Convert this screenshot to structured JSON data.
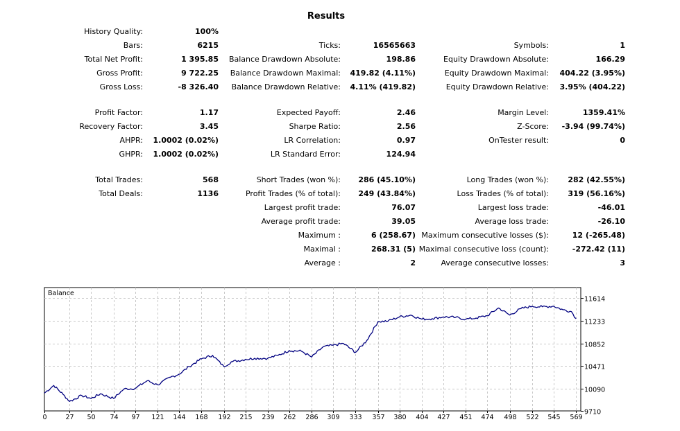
{
  "title": "Results",
  "stats": {
    "history_quality": {
      "label": "History Quality:",
      "value": "100%"
    },
    "bars": {
      "label": "Bars:",
      "value": "6215"
    },
    "total_net_profit": {
      "label": "Total Net Profit:",
      "value": "1 395.85"
    },
    "gross_profit": {
      "label": "Gross Profit:",
      "value": "9 722.25"
    },
    "gross_loss": {
      "label": "Gross Loss:",
      "value": "-8 326.40"
    },
    "profit_factor": {
      "label": "Profit Factor:",
      "value": "1.17"
    },
    "recovery_factor": {
      "label": "Recovery Factor:",
      "value": "3.45"
    },
    "ahpr": {
      "label": "AHPR:",
      "value": "1.0002 (0.02%)"
    },
    "ghpr": {
      "label": "GHPR:",
      "value": "1.0002 (0.02%)"
    },
    "total_trades": {
      "label": "Total Trades:",
      "value": "568"
    },
    "total_deals": {
      "label": "Total Deals:",
      "value": "1136"
    },
    "ticks": {
      "label": "Ticks:",
      "value": "16565663"
    },
    "balance_dd_abs": {
      "label": "Balance Drawdown Absolute:",
      "value": "198.86"
    },
    "balance_dd_max": {
      "label": "Balance Drawdown Maximal:",
      "value": "419.82 (4.11%)"
    },
    "balance_dd_rel": {
      "label": "Balance Drawdown Relative:",
      "value": "4.11% (419.82)"
    },
    "expected_payoff": {
      "label": "Expected Payoff:",
      "value": "2.46"
    },
    "sharpe_ratio": {
      "label": "Sharpe Ratio:",
      "value": "2.56"
    },
    "lr_correlation": {
      "label": "LR Correlation:",
      "value": "0.97"
    },
    "lr_std_error": {
      "label": "LR Standard Error:",
      "value": "124.94"
    },
    "short_trades": {
      "label": "Short Trades (won %):",
      "value": "286 (45.10%)"
    },
    "profit_trades": {
      "label": "Profit Trades (% of total):",
      "value": "249 (43.84%)"
    },
    "largest_profit": {
      "label": "Largest profit trade:",
      "value": "76.07"
    },
    "average_profit": {
      "label": "Average profit trade:",
      "value": "39.05"
    },
    "maximum": {
      "label": "Maximum :",
      "value": "6 (258.67)"
    },
    "maximal": {
      "label": "Maximal :",
      "value": "268.31 (5)"
    },
    "average": {
      "label": "Average :",
      "value": "2"
    },
    "symbols": {
      "label": "Symbols:",
      "value": "1"
    },
    "equity_dd_abs": {
      "label": "Equity Drawdown Absolute:",
      "value": "166.29"
    },
    "equity_dd_max": {
      "label": "Equity Drawdown Maximal:",
      "value": "404.22 (3.95%)"
    },
    "equity_dd_rel": {
      "label": "Equity Drawdown Relative:",
      "value": "3.95% (404.22)"
    },
    "margin_level": {
      "label": "Margin Level:",
      "value": "1359.41%"
    },
    "z_score": {
      "label": "Z-Score:",
      "value": "-3.94 (99.74%)"
    },
    "ontester": {
      "label": "OnTester result:",
      "value": "0"
    },
    "long_trades": {
      "label": "Long Trades (won %):",
      "value": "282 (42.55%)"
    },
    "loss_trades": {
      "label": "Loss Trades (% of total):",
      "value": "319 (56.16%)"
    },
    "largest_loss": {
      "label": "Largest loss trade:",
      "value": "-46.01"
    },
    "average_loss": {
      "label": "Average loss trade:",
      "value": "-26.10"
    },
    "max_consec_losses": {
      "label": "Maximum consecutive losses ($):",
      "value": "12 (-265.48)"
    },
    "maximal_consec_loss": {
      "label": "Maximal consecutive loss (count):",
      "value": "-272.42 (11)"
    },
    "avg_consec_losses": {
      "label": "Average consecutive losses:",
      "value": "3"
    }
  },
  "chart_data": {
    "type": "line",
    "title": "Balance",
    "xlabel": "",
    "ylabel": "",
    "x_ticks": [
      0,
      27,
      50,
      74,
      97,
      121,
      144,
      168,
      192,
      215,
      239,
      262,
      286,
      309,
      333,
      357,
      380,
      404,
      427,
      451,
      474,
      498,
      522,
      545,
      569
    ],
    "y_ticks": [
      9710,
      10090,
      10471,
      10852,
      11233,
      11614
    ],
    "xlim": [
      0,
      574
    ],
    "ylim": [
      9710,
      11795
    ],
    "grid": true,
    "line_color": "#000080",
    "series": [
      {
        "name": "Balance",
        "x": [
          0,
          10,
          20,
          27,
          40,
          50,
          60,
          74,
          85,
          97,
          110,
          121,
          135,
          144,
          155,
          168,
          180,
          192,
          200,
          215,
          225,
          239,
          250,
          262,
          275,
          286,
          298,
          309,
          320,
          333,
          345,
          357,
          368,
          380,
          392,
          404,
          415,
          427,
          440,
          451,
          462,
          474,
          486,
          498,
          510,
          522,
          533,
          545,
          555,
          564,
          569
        ],
        "values": [
          10010,
          10140,
          9990,
          9870,
          9970,
          9920,
          10000,
          9920,
          10080,
          10090,
          10220,
          10150,
          10280,
          10330,
          10460,
          10590,
          10650,
          10460,
          10540,
          10580,
          10600,
          10600,
          10650,
          10730,
          10720,
          10620,
          10790,
          10820,
          10850,
          10700,
          10900,
          11220,
          11230,
          11300,
          11330,
          11260,
          11270,
          11300,
          11290,
          11260,
          11280,
          11320,
          11450,
          11330,
          11440,
          11480,
          11470,
          11480,
          11420,
          11390,
          11270
        ]
      }
    ]
  }
}
